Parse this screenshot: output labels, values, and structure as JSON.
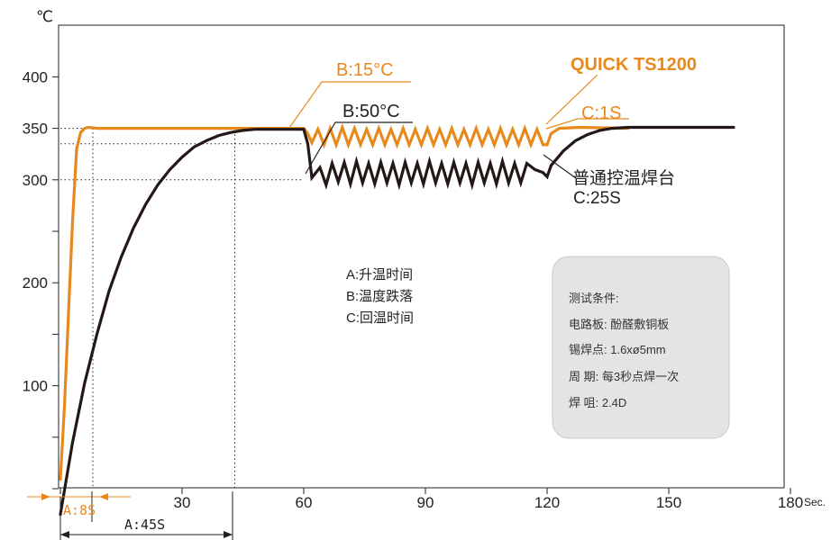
{
  "chart_data": {
    "type": "line",
    "y_unit": "℃",
    "x_unit": "Sec.",
    "x_ticks": [
      0,
      30,
      60,
      90,
      120,
      150,
      180
    ],
    "x_tick_labels": [
      "",
      "30",
      "60",
      "90",
      "120",
      "150",
      "180"
    ],
    "y_ticks": [
      0,
      50,
      100,
      150,
      200,
      250,
      300,
      350,
      400
    ],
    "y_tick_labels": [
      "",
      "",
      "100",
      "",
      "200",
      "",
      "300",
      "350",
      "400"
    ],
    "xlim": [
      0,
      180
    ],
    "ylim": [
      -25,
      450
    ],
    "grid": false,
    "series": [
      {
        "name": "QUICK TS1200",
        "color": "#E8891E",
        "points": [
          [
            0,
            9
          ],
          [
            1,
            80
          ],
          [
            2,
            170
          ],
          [
            3,
            260
          ],
          [
            4,
            330
          ],
          [
            5,
            346
          ],
          [
            6,
            350
          ],
          [
            7,
            351
          ],
          [
            9,
            350
          ],
          [
            60,
            350
          ],
          [
            61,
            345
          ],
          [
            62,
            336
          ],
          [
            63.5,
            349
          ],
          [
            65,
            334
          ],
          [
            66.5,
            350
          ],
          [
            68,
            334
          ],
          [
            69.5,
            351
          ],
          [
            71,
            334
          ],
          [
            72.5,
            350
          ],
          [
            74,
            334
          ],
          [
            75.5,
            349
          ],
          [
            77,
            334
          ],
          [
            78.5,
            350
          ],
          [
            80,
            334
          ],
          [
            81.5,
            349
          ],
          [
            83,
            334
          ],
          [
            84.5,
            350
          ],
          [
            86,
            334
          ],
          [
            87.5,
            349
          ],
          [
            89,
            334
          ],
          [
            90.5,
            350
          ],
          [
            92,
            334
          ],
          [
            93.5,
            349
          ],
          [
            95,
            334
          ],
          [
            96.5,
            350
          ],
          [
            98,
            334
          ],
          [
            99.5,
            349
          ],
          [
            101,
            334
          ],
          [
            102.5,
            350
          ],
          [
            104,
            334
          ],
          [
            105.5,
            349
          ],
          [
            107,
            334
          ],
          [
            108.5,
            350
          ],
          [
            110,
            334
          ],
          [
            111.5,
            349
          ],
          [
            113,
            334
          ],
          [
            114.5,
            350
          ],
          [
            116,
            334
          ],
          [
            117.5,
            349
          ],
          [
            119,
            334
          ],
          [
            120,
            334
          ],
          [
            121,
            345
          ],
          [
            123,
            350
          ],
          [
            128,
            351
          ],
          [
            140,
            350
          ]
        ]
      },
      {
        "name": "普通控温焊台",
        "color": "#231815",
        "points": [
          [
            0,
            -25
          ],
          [
            3,
            45
          ],
          [
            6,
            103
          ],
          [
            9,
            150
          ],
          [
            12,
            192
          ],
          [
            15,
            225
          ],
          [
            18,
            253
          ],
          [
            21,
            276
          ],
          [
            24,
            295
          ],
          [
            27,
            310
          ],
          [
            30,
            322
          ],
          [
            33,
            332
          ],
          [
            36,
            338
          ],
          [
            39,
            343
          ],
          [
            42,
            346
          ],
          [
            45,
            348
          ],
          [
            48,
            349
          ],
          [
            60,
            349
          ],
          [
            61,
            335
          ],
          [
            62,
            302
          ],
          [
            64,
            312
          ],
          [
            65.5,
            295
          ],
          [
            67,
            316
          ],
          [
            68.5,
            298
          ],
          [
            70,
            317
          ],
          [
            71.5,
            296
          ],
          [
            73,
            318
          ],
          [
            74.5,
            297
          ],
          [
            76,
            316
          ],
          [
            77.5,
            296
          ],
          [
            79,
            317
          ],
          [
            80.5,
            297
          ],
          [
            82,
            316
          ],
          [
            83.5,
            295
          ],
          [
            85,
            317
          ],
          [
            86.5,
            297
          ],
          [
            88,
            316
          ],
          [
            89.5,
            296
          ],
          [
            91,
            318
          ],
          [
            92.5,
            297
          ],
          [
            94,
            316
          ],
          [
            95.5,
            296
          ],
          [
            97,
            317
          ],
          [
            98.5,
            297
          ],
          [
            100,
            316
          ],
          [
            101.5,
            295
          ],
          [
            103,
            317
          ],
          [
            104.5,
            297
          ],
          [
            106,
            316
          ],
          [
            107.5,
            296
          ],
          [
            109,
            318
          ],
          [
            110.5,
            297
          ],
          [
            112,
            316
          ],
          [
            113.5,
            297
          ],
          [
            115,
            316
          ],
          [
            117,
            310
          ],
          [
            119,
            307
          ],
          [
            120,
            303
          ],
          [
            121,
            314
          ],
          [
            124,
            328
          ],
          [
            127,
            338
          ],
          [
            130,
            344
          ],
          [
            133,
            348
          ],
          [
            136,
            350
          ],
          [
            140,
            351
          ],
          [
            166,
            351
          ]
        ]
      }
    ],
    "annotations": {
      "b_quick": "B:15°C",
      "b_normal": "B:50°C",
      "c_quick": "C:1S",
      "normal_line1": "普通控温焊台",
      "normal_line2": "C:25S",
      "a_quick": "A:8S",
      "a_normal": "A:45S"
    },
    "legend_lines": [
      "A:升温时间",
      "B:温度跌落",
      "C:回温时间"
    ],
    "test_box": {
      "title": "测试条件:",
      "rows": [
        "电路板: 酚醛敷铜板",
        "锡焊点: 1.6xø5mm",
        "周  期: 每3秒点焊一次",
        "焊  咀: 2.4D"
      ]
    }
  }
}
